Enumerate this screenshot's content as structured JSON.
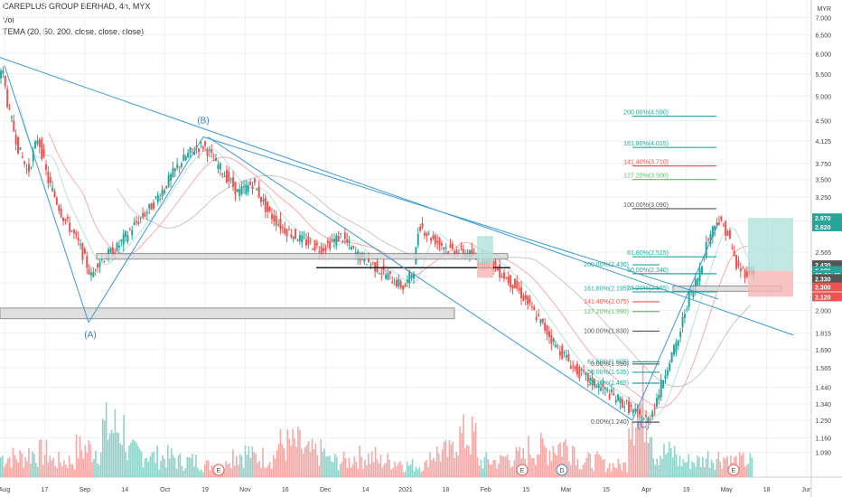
{
  "header": {
    "title": "CAREPLUS GROUP BERHAD, 4h, MYX",
    "volume": "Vol",
    "indicator": "TEMA (20, 50, 200, close, close, close)"
  },
  "currency": "MYR",
  "colors": {
    "up": "#26a69a",
    "down": "#ef5350",
    "trend": "#3a9ad9",
    "grid": "#eef0f3"
  },
  "chart_data": {
    "type": "candlestick",
    "y_axis": {
      "scale": "log",
      "range": [
        0.98,
        7.4
      ],
      "ticks": [
        "7.000",
        "6.500",
        "6.000",
        "5.500",
        "5.000",
        "4.500",
        "4.125",
        "3.750",
        "3.500",
        "3.250",
        "2.930",
        "2.565",
        "2.250",
        "2.000",
        "1.815",
        "1.690",
        "1.565",
        "1.440",
        "1.340",
        "1.250",
        "1.160",
        "1.090"
      ]
    },
    "x_axis": {
      "ticks": [
        "Aug",
        "17",
        "Sep",
        "14",
        "Oct",
        "19",
        "Nov",
        "16",
        "Dec",
        "14",
        "2021",
        "18",
        "Feb",
        "15",
        "Mar",
        "15",
        "Apr",
        "19",
        "May",
        "18",
        "Jun"
      ]
    },
    "close_path": [
      [
        0.0,
        5.3
      ],
      [
        0.3,
        5.7
      ],
      [
        1.0,
        4.7
      ],
      [
        2.0,
        4.0
      ],
      [
        3.0,
        3.6
      ],
      [
        4.0,
        4.2
      ],
      [
        5.0,
        3.5
      ],
      [
        6.5,
        3.0
      ],
      [
        8.0,
        2.7
      ],
      [
        9.5,
        2.3
      ],
      [
        10.0,
        2.45
      ],
      [
        12.0,
        2.6
      ],
      [
        14.0,
        2.9
      ],
      [
        15.5,
        3.1
      ],
      [
        17.0,
        3.4
      ],
      [
        18.5,
        3.75
      ],
      [
        20.0,
        4.0
      ],
      [
        21.0,
        4.05
      ],
      [
        22.0,
        3.8
      ],
      [
        23.0,
        3.6
      ],
      [
        24.5,
        3.3
      ],
      [
        26.0,
        3.45
      ],
      [
        27.5,
        3.05
      ],
      [
        29.0,
        2.85
      ],
      [
        31.0,
        2.7
      ],
      [
        33.0,
        2.6
      ],
      [
        35.0,
        2.75
      ],
      [
        36.5,
        2.55
      ],
      [
        38.0,
        2.45
      ],
      [
        40.0,
        2.3
      ],
      [
        41.5,
        2.2
      ],
      [
        42.5,
        2.4
      ],
      [
        43.0,
        2.9
      ],
      [
        44.0,
        2.75
      ],
      [
        46.0,
        2.6
      ],
      [
        48.0,
        2.55
      ],
      [
        49.0,
        2.48
      ],
      [
        50.0,
        2.5
      ],
      [
        51.0,
        2.38
      ],
      [
        53.0,
        2.2
      ],
      [
        55.0,
        1.95
      ],
      [
        57.0,
        1.72
      ],
      [
        59.0,
        1.55
      ],
      [
        60.5,
        1.48
      ],
      [
        62.0,
        1.42
      ],
      [
        64.0,
        1.34
      ],
      [
        65.5,
        1.27
      ],
      [
        66.5,
        1.25
      ],
      [
        67.5,
        1.4
      ],
      [
        68.5,
        1.6
      ],
      [
        69.5,
        1.75
      ],
      [
        70.5,
        2.1
      ],
      [
        71.5,
        2.3
      ],
      [
        72.5,
        2.7
      ],
      [
        73.5,
        2.95
      ],
      [
        74.5,
        2.8
      ],
      [
        75.5,
        2.4
      ],
      [
        76.5,
        2.35
      ],
      [
        77.0,
        2.38
      ]
    ],
    "volume_envelope": [
      0.25,
      0.3,
      0.2,
      0.35,
      0.6,
      0.3,
      0.25,
      0.2,
      0.15,
      0.3,
      0.25,
      0.4,
      0.3,
      0.2,
      0.25,
      0.2,
      0.15,
      0.3,
      0.5,
      0.2,
      0.25,
      0.35,
      0.4,
      0.2,
      0.15,
      0.9,
      0.3,
      0.2,
      0.25,
      0.2
    ]
  },
  "wave_labels": [
    "(B)",
    "(A)",
    "(C)"
  ],
  "fib_upper": [
    {
      "label": "200.00%(4.590)",
      "price": 4.59,
      "color": "#26a69a"
    },
    {
      "label": "161.80%(4.015)",
      "price": 4.015,
      "color": "#26a69a"
    },
    {
      "label": "141.40%(3.710)",
      "price": 3.71,
      "color": "#ef5350"
    },
    {
      "label": "127.20%(3.500)",
      "price": 3.5,
      "color": "#66bb6a"
    },
    {
      "label": "100.00%(3.090)",
      "price": 3.09,
      "color": "#555555"
    },
    {
      "label": "61.80%(2.515)",
      "price": 2.515,
      "color": "#26a69a"
    },
    {
      "label": "50.00%(2.340)",
      "price": 2.34,
      "color": "#26a69a"
    },
    {
      "label": "38.20%(2.165)",
      "price": 2.165,
      "color": "#26a69a"
    }
  ],
  "fib_lower": [
    {
      "label": "200.00%(2.430)",
      "price": 2.43,
      "color": "#26a69a"
    },
    {
      "label": "161.80%(2.195)",
      "price": 2.195,
      "color": "#26a69a"
    },
    {
      "label": "141.40%(2.075)",
      "price": 2.075,
      "color": "#ef5350"
    },
    {
      "label": "127.20%(1.990)",
      "price": 1.99,
      "color": "#66bb6a"
    },
    {
      "label": "100.00%(1.830)",
      "price": 1.83,
      "color": "#555555"
    },
    {
      "label": "61.80%(1.605)",
      "price": 1.605,
      "color": "#26a69a"
    },
    {
      "label": "50.00%(1.535)",
      "price": 1.535,
      "color": "#26a69a"
    },
    {
      "label": "38.20%(1.465)",
      "price": 1.465,
      "color": "#26a69a"
    },
    {
      "label": "0.00%(1.590)",
      "price": 1.59,
      "color": "#555555"
    },
    {
      "label": "0.00%(1.240)",
      "price": 1.24,
      "color": "#555555"
    }
  ],
  "price_badges": [
    {
      "text": "2.970",
      "color": "#26a69a"
    },
    {
      "text": "2.820",
      "color": "#26a69a"
    },
    {
      "text": "2.430",
      "color": "#555555"
    },
    {
      "text": "2.370",
      "color": "#26a69a"
    },
    {
      "text": "03:26:42",
      "color": "#26a69a"
    },
    {
      "text": "2.330",
      "color": "#555555"
    },
    {
      "text": "2.300",
      "color": "#ef5350"
    },
    {
      "text": "2.120",
      "color": "#ef5350"
    }
  ],
  "event_markers": [
    "E",
    "E",
    "D",
    "E"
  ]
}
